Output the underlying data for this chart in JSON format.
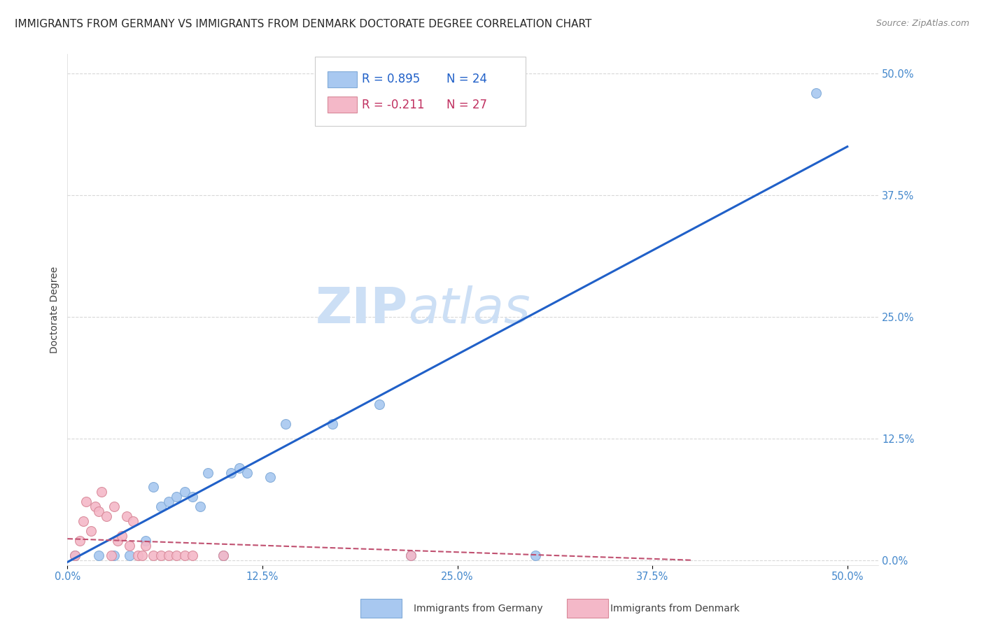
{
  "title": "IMMIGRANTS FROM GERMANY VS IMMIGRANTS FROM DENMARK DOCTORATE DEGREE CORRELATION CHART",
  "source": "Source: ZipAtlas.com",
  "tick_labels": [
    "0.0%",
    "12.5%",
    "25.0%",
    "37.5%",
    "50.0%"
  ],
  "tick_vals": [
    0.0,
    0.125,
    0.25,
    0.375,
    0.5
  ],
  "xlim": [
    0.0,
    0.52
  ],
  "ylim": [
    -0.005,
    0.52
  ],
  "ylabel": "Doctorate Degree",
  "watermark_line1": "ZIP",
  "watermark_line2": "atlas",
  "legend_R_germany": "R = 0.895",
  "legend_N_germany": "N = 24",
  "legend_R_denmark": "R = -0.211",
  "legend_N_denmark": "N = 27",
  "germany_color": "#a8c8f0",
  "denmark_color": "#f4b8c8",
  "germany_edge_color": "#80aad8",
  "denmark_edge_color": "#d88898",
  "germany_line_color": "#2060c8",
  "denmark_line_color": "#c05070",
  "germany_scatter_x": [
    0.005,
    0.02,
    0.03,
    0.04,
    0.05,
    0.055,
    0.06,
    0.065,
    0.07,
    0.075,
    0.08,
    0.085,
    0.09,
    0.1,
    0.105,
    0.11,
    0.115,
    0.13,
    0.14,
    0.17,
    0.2,
    0.22,
    0.3,
    0.48
  ],
  "germany_scatter_y": [
    0.005,
    0.005,
    0.005,
    0.005,
    0.02,
    0.075,
    0.055,
    0.06,
    0.065,
    0.07,
    0.065,
    0.055,
    0.09,
    0.005,
    0.09,
    0.095,
    0.09,
    0.085,
    0.14,
    0.14,
    0.16,
    0.005,
    0.005,
    0.48
  ],
  "denmark_scatter_x": [
    0.005,
    0.008,
    0.01,
    0.012,
    0.015,
    0.018,
    0.02,
    0.022,
    0.025,
    0.028,
    0.03,
    0.032,
    0.035,
    0.038,
    0.04,
    0.042,
    0.045,
    0.048,
    0.05,
    0.055,
    0.06,
    0.065,
    0.07,
    0.075,
    0.08,
    0.1,
    0.22
  ],
  "denmark_scatter_y": [
    0.005,
    0.02,
    0.04,
    0.06,
    0.03,
    0.055,
    0.05,
    0.07,
    0.045,
    0.005,
    0.055,
    0.02,
    0.025,
    0.045,
    0.015,
    0.04,
    0.005,
    0.005,
    0.015,
    0.005,
    0.005,
    0.005,
    0.005,
    0.005,
    0.005,
    0.005,
    0.005
  ],
  "germany_trendline_x": [
    0.0,
    0.5
  ],
  "germany_trendline_y": [
    -0.002,
    0.425
  ],
  "denmark_trendline_x": [
    0.0,
    0.4
  ],
  "denmark_trendline_y": [
    0.022,
    0.0
  ],
  "grid_color": "#d8d8d8",
  "background_color": "#ffffff",
  "title_fontsize": 11,
  "source_fontsize": 9,
  "axis_label_fontsize": 10,
  "tick_fontsize": 10.5,
  "legend_fontsize": 12,
  "watermark_fontsize": 52,
  "watermark_color": "#ccdff5",
  "marker_size": 100
}
